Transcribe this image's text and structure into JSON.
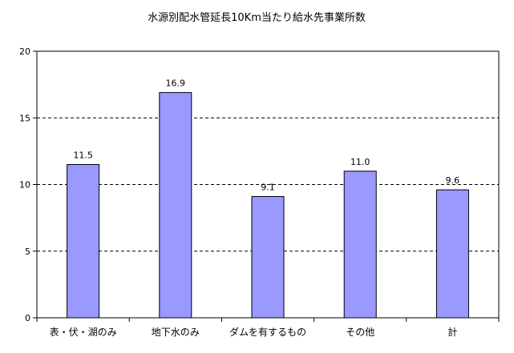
{
  "chart_data": {
    "type": "bar",
    "title": "水源別配水管延長10Km当たり給水先事業所数",
    "xlabel": "",
    "ylabel": "",
    "categories": [
      "表・伏・湖のみ",
      "地下水のみ",
      "ダムを有するもの",
      "その他",
      "計"
    ],
    "values": [
      11.5,
      16.9,
      9.1,
      11.0,
      9.6
    ],
    "data_labels": [
      "11.5",
      "16.9",
      "9.1",
      "11.0",
      "9.6"
    ],
    "ylim": [
      0,
      20
    ],
    "yticks": [
      0,
      5,
      10,
      15,
      20
    ],
    "ytick_labels": [
      "0",
      "5",
      "10",
      "15",
      "20"
    ],
    "grid": "horizontal-dashed",
    "legend": "none",
    "colors": {
      "bar_fill": "#9999ff",
      "bar_stroke": "#000000",
      "grid": "#000000",
      "axis": "#000000"
    }
  }
}
